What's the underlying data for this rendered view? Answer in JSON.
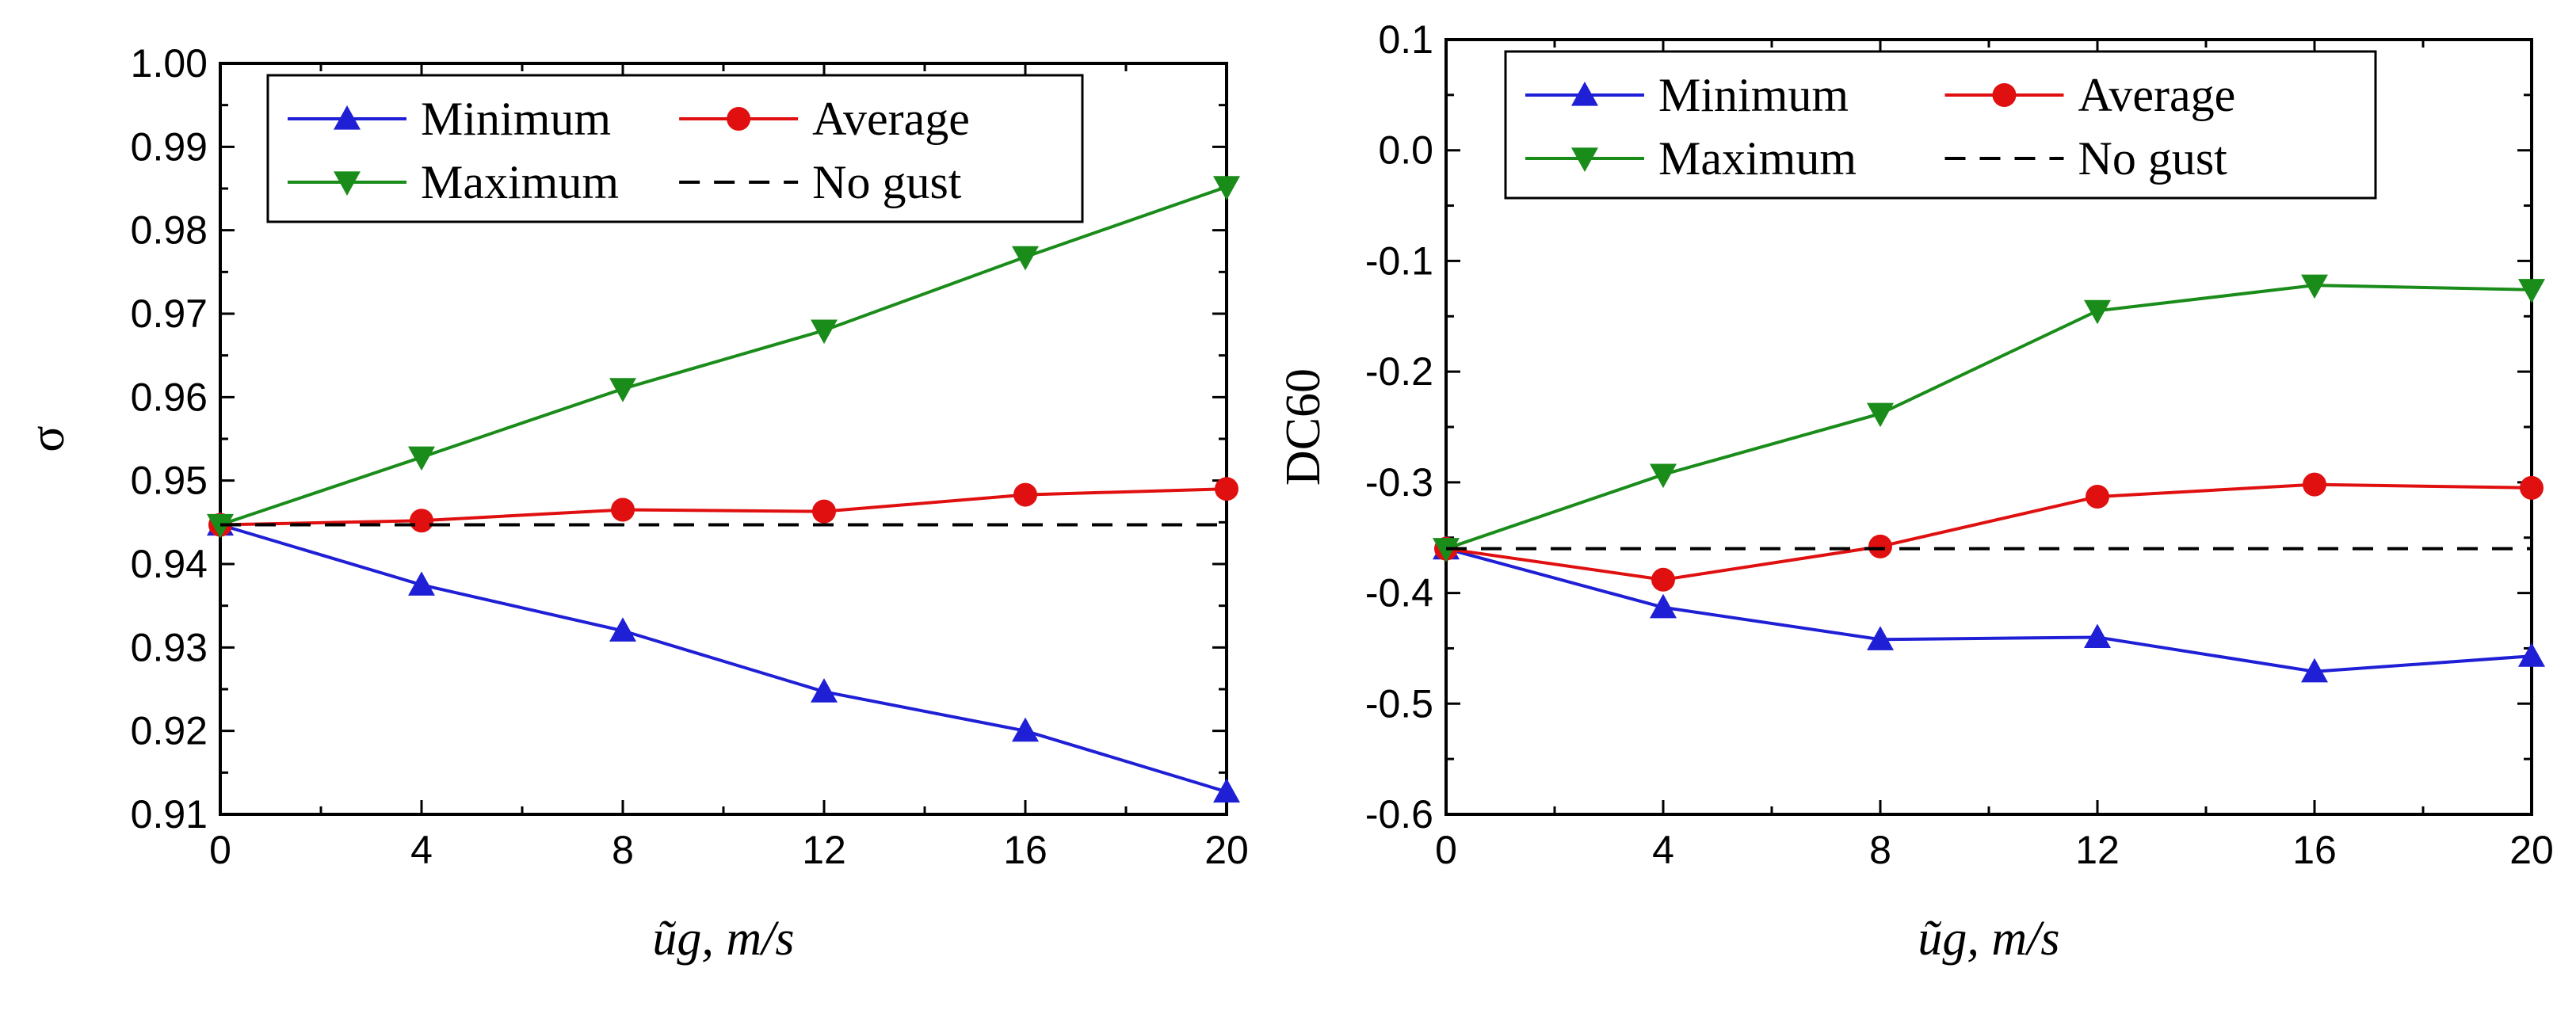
{
  "chart_data": [
    {
      "type": "line",
      "title": "",
      "xlabel": "ũg, m/s",
      "ylabel": "σ",
      "x": [
        0,
        4,
        8,
        12,
        16,
        20
      ],
      "xlim": [
        0,
        20
      ],
      "ylim": [
        0.91,
        1.0
      ],
      "xticks": [
        "0",
        "4",
        "8",
        "12",
        "16",
        "20"
      ],
      "yticks": [
        "0.91",
        "0.92",
        "0.93",
        "0.94",
        "0.95",
        "0.96",
        "0.97",
        "0.98",
        "0.99",
        "1.00"
      ],
      "grid": false,
      "legend_position": "top",
      "series": [
        {
          "name": "Minimum",
          "values": [
            0.9447,
            0.9375,
            0.932,
            0.9247,
            0.92,
            0.9127
          ],
          "color": "#1f1fd6",
          "marker": "triangle-up"
        },
        {
          "name": "Average",
          "values": [
            0.9447,
            0.9452,
            0.9465,
            0.9463,
            0.9483,
            0.949
          ],
          "color": "#e01010",
          "marker": "circle"
        },
        {
          "name": "Maximum",
          "values": [
            0.9447,
            0.9528,
            0.961,
            0.968,
            0.9768,
            0.9852
          ],
          "color": "#1a8c1a",
          "marker": "triangle-down"
        },
        {
          "name": "No gust",
          "values": [
            0.9447,
            0.9447,
            0.9447,
            0.9447,
            0.9447,
            0.9447
          ],
          "color": "#000000",
          "marker": "none",
          "dash": true
        }
      ]
    },
    {
      "type": "line",
      "title": "",
      "xlabel": "ũg, m/s",
      "ylabel": "DC60",
      "x": [
        0,
        4,
        8,
        12,
        16,
        20
      ],
      "xlim": [
        0,
        20
      ],
      "ylim": [
        -0.6,
        0.1
      ],
      "xticks": [
        "0",
        "4",
        "8",
        "12",
        "16",
        "20"
      ],
      "yticks": [
        "-0.6",
        "-0.5",
        "-0.4",
        "-0.3",
        "-0.2",
        "-0.1",
        "0.0",
        "0.1"
      ],
      "grid": false,
      "legend_position": "top",
      "series": [
        {
          "name": "Minimum",
          "values": [
            -0.36,
            -0.413,
            -0.442,
            -0.44,
            -0.471,
            -0.457
          ],
          "color": "#1f1fd6",
          "marker": "triangle-up"
        },
        {
          "name": "Average",
          "values": [
            -0.36,
            -0.388,
            -0.358,
            -0.313,
            -0.302,
            -0.305
          ],
          "color": "#e01010",
          "marker": "circle"
        },
        {
          "name": "Maximum",
          "values": [
            -0.36,
            -0.293,
            -0.238,
            -0.145,
            -0.122,
            -0.126
          ],
          "color": "#1a8c1a",
          "marker": "triangle-down"
        },
        {
          "name": "No gust",
          "values": [
            -0.36,
            -0.36,
            -0.36,
            -0.36,
            -0.36,
            -0.36
          ],
          "color": "#000000",
          "marker": "none",
          "dash": true
        }
      ]
    }
  ]
}
